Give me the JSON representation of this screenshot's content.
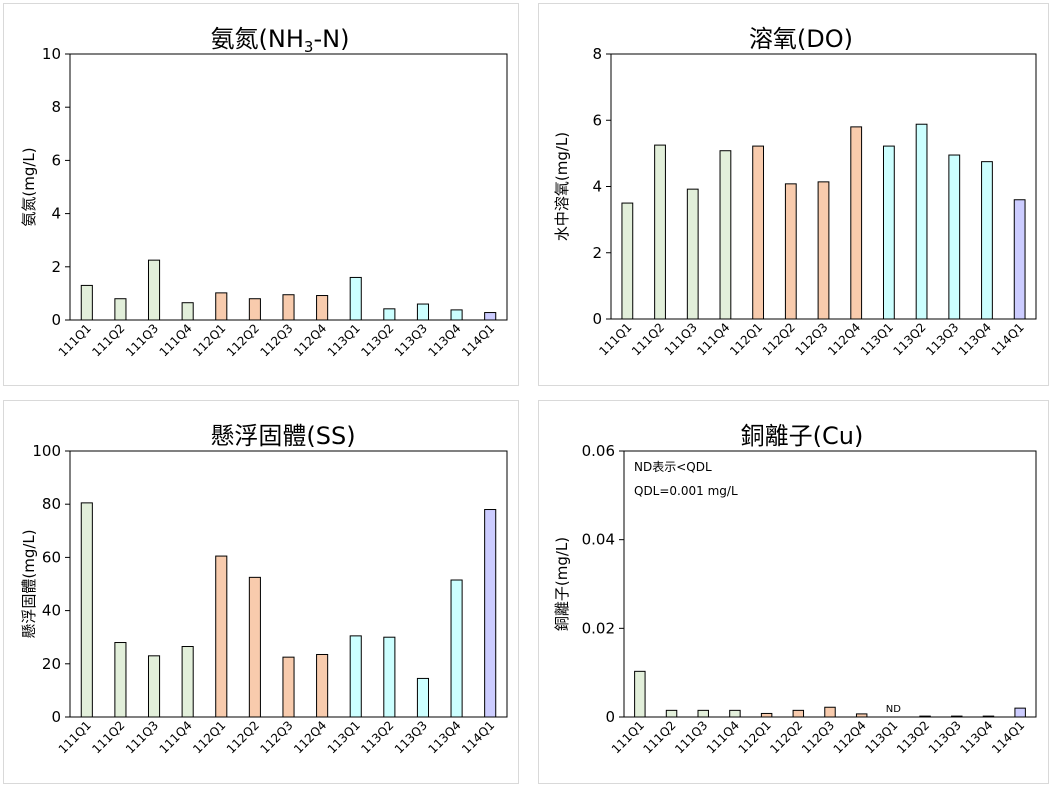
{
  "colors": {
    "111": "#e2efda",
    "112": "#f8cbad",
    "113": "#ccffff",
    "114": "#ccccff",
    "bar_outline": "#000000",
    "panel_border": "#d9d9d9"
  },
  "chart_data": [
    {
      "id": "nh3",
      "type": "bar",
      "title_main": "氨氮(NH",
      "title_sub": "3",
      "title_tail": "-N)",
      "ylabel": "氨氮(mg/L)",
      "ylim": [
        0,
        10
      ],
      "yticks": [
        0,
        2,
        4,
        6,
        8,
        10
      ],
      "tick_labels": [
        "0",
        "2",
        "4",
        "6",
        "8",
        "10"
      ],
      "categories": [
        "111Q1",
        "111Q2",
        "111Q3",
        "111Q4",
        "112Q1",
        "112Q2",
        "112Q3",
        "112Q4",
        "113Q1",
        "113Q2",
        "113Q3",
        "113Q4",
        "114Q1"
      ],
      "groups": [
        "111",
        "111",
        "111",
        "111",
        "112",
        "112",
        "112",
        "112",
        "113",
        "113",
        "113",
        "113",
        "114"
      ],
      "values": [
        1.3,
        0.8,
        2.25,
        0.65,
        1.02,
        0.8,
        0.95,
        0.92,
        1.6,
        0.42,
        0.6,
        0.38,
        0.28
      ],
      "notes": [],
      "nd_label": null
    },
    {
      "id": "do",
      "type": "bar",
      "title_main": "溶氧(DO)",
      "ylabel": "水中溶氧(mg/L)",
      "ylim": [
        0,
        8
      ],
      "yticks": [
        0,
        2,
        4,
        6,
        8
      ],
      "tick_labels": [
        "0",
        "2",
        "4",
        "6",
        "8"
      ],
      "categories": [
        "111Q1",
        "111Q2",
        "111Q3",
        "111Q4",
        "112Q1",
        "112Q2",
        "112Q3",
        "112Q4",
        "113Q1",
        "113Q2",
        "113Q3",
        "113Q4",
        "114Q1"
      ],
      "groups": [
        "111",
        "111",
        "111",
        "111",
        "112",
        "112",
        "112",
        "112",
        "113",
        "113",
        "113",
        "113",
        "114"
      ],
      "values": [
        3.5,
        5.25,
        3.92,
        5.08,
        5.22,
        4.08,
        4.14,
        5.8,
        5.22,
        5.88,
        4.95,
        4.75,
        3.6
      ],
      "notes": [],
      "nd_label": null
    },
    {
      "id": "ss",
      "type": "bar",
      "title_main": "懸浮固體(SS)",
      "ylabel": "懸浮固體(mg/L)",
      "ylim": [
        0,
        100
      ],
      "yticks": [
        0,
        20,
        40,
        60,
        80,
        100
      ],
      "tick_labels": [
        "0",
        "20",
        "40",
        "60",
        "80",
        "100"
      ],
      "categories": [
        "111Q1",
        "111Q2",
        "111Q3",
        "111Q4",
        "112Q1",
        "112Q2",
        "112Q3",
        "112Q4",
        "113Q1",
        "113Q2",
        "113Q3",
        "113Q4",
        "114Q1"
      ],
      "groups": [
        "111",
        "111",
        "111",
        "111",
        "112",
        "112",
        "112",
        "112",
        "113",
        "113",
        "113",
        "113",
        "114"
      ],
      "values": [
        80.5,
        28,
        23,
        26.5,
        60.5,
        52.5,
        22.5,
        23.5,
        30.5,
        30,
        14.5,
        51.5,
        78
      ],
      "notes": [],
      "nd_label": null
    },
    {
      "id": "cu",
      "type": "bar",
      "title_main": "銅離子(Cu)",
      "ylabel": "銅離子(mg/L)",
      "ylim": [
        0,
        0.06
      ],
      "yticks": [
        0,
        0.02,
        0.04,
        0.06
      ],
      "tick_labels": [
        "0",
        "0.02",
        "0.04",
        "0.06"
      ],
      "categories": [
        "111Q1",
        "111Q2",
        "111Q3",
        "111Q4",
        "112Q1",
        "112Q2",
        "112Q3",
        "112Q4",
        "113Q1",
        "113Q2",
        "113Q3",
        "113Q4",
        "114Q1"
      ],
      "groups": [
        "111",
        "111",
        "111",
        "111",
        "112",
        "112",
        "112",
        "112",
        "113",
        "113",
        "113",
        "113",
        "114"
      ],
      "values": [
        0.0103,
        0.0015,
        0.0015,
        0.0015,
        0.0008,
        0.0015,
        0.0022,
        0.0007,
        0,
        0.0002,
        0.0002,
        0.0002,
        0.002
      ],
      "notes": [
        "ND表示<QDL",
        "QDL=0.001 mg/L"
      ],
      "nd_label": {
        "index": 8,
        "text": "ND"
      }
    }
  ]
}
